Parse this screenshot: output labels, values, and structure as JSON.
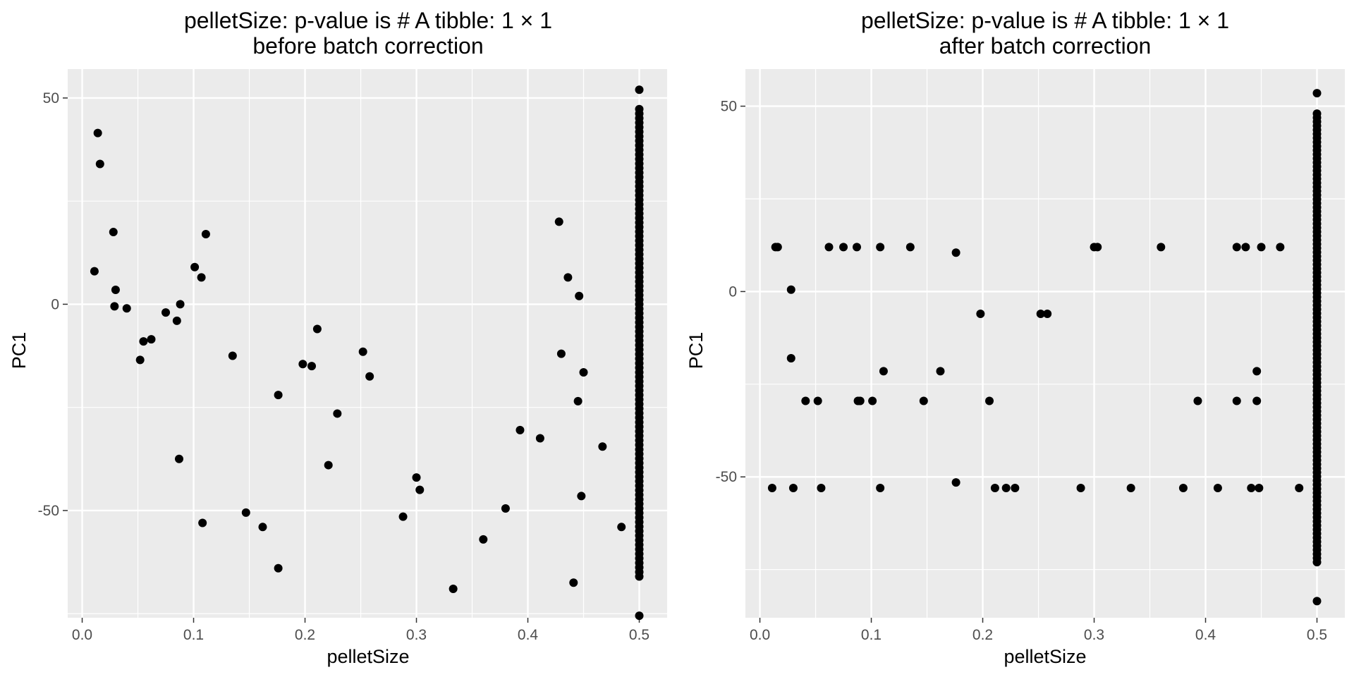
{
  "chart_data": [
    {
      "type": "scatter",
      "title": "pelletSize: p-value is # A tibble: 1 × 1",
      "subtitle": "before batch correction",
      "xlabel": "pelletSize",
      "ylabel": "PC1",
      "xlim": [
        -0.013,
        0.525
      ],
      "ylim": [
        -76,
        57
      ],
      "xticks": [
        0.0,
        0.1,
        0.2,
        0.3,
        0.4,
        0.5
      ],
      "xtick_labels": [
        "0.0",
        "0.1",
        "0.2",
        "0.3",
        "0.4",
        "0.5"
      ],
      "yticks": [
        -50,
        0,
        50
      ],
      "ytick_labels": [
        "-50",
        "0",
        "50"
      ],
      "grid": true,
      "point_color": "#000000",
      "points": [
        [
          0.011,
          8
        ],
        [
          0.014,
          41.5
        ],
        [
          0.016,
          34
        ],
        [
          0.028,
          17.5
        ],
        [
          0.029,
          -0.5
        ],
        [
          0.03,
          3.5
        ],
        [
          0.04,
          -1
        ],
        [
          0.052,
          -13.5
        ],
        [
          0.055,
          -9
        ],
        [
          0.062,
          -8.5
        ],
        [
          0.075,
          -2
        ],
        [
          0.085,
          -4
        ],
        [
          0.087,
          -37.5
        ],
        [
          0.088,
          0
        ],
        [
          0.101,
          9
        ],
        [
          0.107,
          6.5
        ],
        [
          0.108,
          -53
        ],
        [
          0.111,
          17
        ],
        [
          0.135,
          -12.5
        ],
        [
          0.147,
          -50.5
        ],
        [
          0.162,
          -54
        ],
        [
          0.176,
          -22
        ],
        [
          0.176,
          -64
        ],
        [
          0.198,
          -14.5
        ],
        [
          0.206,
          -15
        ],
        [
          0.211,
          -6
        ],
        [
          0.221,
          -39
        ],
        [
          0.229,
          -26.5
        ],
        [
          0.252,
          -11.5
        ],
        [
          0.258,
          -17.5
        ],
        [
          0.288,
          -51.5
        ],
        [
          0.3,
          -42
        ],
        [
          0.303,
          -45
        ],
        [
          0.333,
          -69
        ],
        [
          0.36,
          -57
        ],
        [
          0.38,
          -49.5
        ],
        [
          0.393,
          -30.5
        ],
        [
          0.411,
          -32.5
        ],
        [
          0.428,
          20
        ],
        [
          0.43,
          -12
        ],
        [
          0.436,
          6.5
        ],
        [
          0.441,
          -67.5
        ],
        [
          0.445,
          -23.5
        ],
        [
          0.446,
          2
        ],
        [
          0.448,
          -46.5
        ],
        [
          0.45,
          -16.5
        ],
        [
          0.467,
          -34.5
        ],
        [
          0.484,
          -54
        ]
      ],
      "column_x": 0.5,
      "column_y_range": [
        -66,
        48
      ],
      "column_extra_y": [
        52,
        -75.5
      ]
    },
    {
      "type": "scatter",
      "title": "pelletSize: p-value is # A tibble: 1 × 1",
      "subtitle": "after batch correction",
      "xlabel": "pelletSize",
      "ylabel": "PC1",
      "xlim": [
        -0.013,
        0.525
      ],
      "ylim": [
        -88,
        60
      ],
      "xticks": [
        0.0,
        0.1,
        0.2,
        0.3,
        0.4,
        0.5
      ],
      "xtick_labels": [
        "0.0",
        "0.1",
        "0.2",
        "0.3",
        "0.4",
        "0.5"
      ],
      "yticks": [
        -50,
        0,
        50
      ],
      "ytick_labels": [
        "-50",
        "0",
        "50"
      ],
      "grid": true,
      "point_color": "#000000",
      "points": [
        [
          0.011,
          -53
        ],
        [
          0.014,
          12
        ],
        [
          0.016,
          12
        ],
        [
          0.028,
          0.5
        ],
        [
          0.028,
          -18
        ],
        [
          0.03,
          -53
        ],
        [
          0.041,
          -29.5
        ],
        [
          0.052,
          -29.5
        ],
        [
          0.055,
          -53
        ],
        [
          0.062,
          12
        ],
        [
          0.075,
          12
        ],
        [
          0.087,
          12
        ],
        [
          0.088,
          -29.5
        ],
        [
          0.09,
          -29.5
        ],
        [
          0.101,
          -29.5
        ],
        [
          0.108,
          12
        ],
        [
          0.108,
          -53
        ],
        [
          0.111,
          -21.5
        ],
        [
          0.135,
          12
        ],
        [
          0.147,
          -29.5
        ],
        [
          0.162,
          -21.5
        ],
        [
          0.176,
          10.5
        ],
        [
          0.176,
          -51.5
        ],
        [
          0.198,
          -6
        ],
        [
          0.206,
          -29.5
        ],
        [
          0.211,
          -53
        ],
        [
          0.221,
          -53
        ],
        [
          0.229,
          -53
        ],
        [
          0.252,
          -6
        ],
        [
          0.258,
          -6
        ],
        [
          0.288,
          -53
        ],
        [
          0.3,
          12
        ],
        [
          0.303,
          12
        ],
        [
          0.333,
          -53
        ],
        [
          0.36,
          12
        ],
        [
          0.38,
          -53
        ],
        [
          0.393,
          -29.5
        ],
        [
          0.411,
          -53
        ],
        [
          0.428,
          12
        ],
        [
          0.428,
          -29.5
        ],
        [
          0.436,
          12
        ],
        [
          0.441,
          -53
        ],
        [
          0.446,
          -21.5
        ],
        [
          0.446,
          -29.5
        ],
        [
          0.448,
          -53
        ],
        [
          0.45,
          12
        ],
        [
          0.467,
          12
        ],
        [
          0.484,
          -53
        ]
      ],
      "column_x": 0.5,
      "column_y_range": [
        -73,
        49
      ],
      "column_extra_y": [
        53.5,
        -83.5
      ]
    }
  ]
}
